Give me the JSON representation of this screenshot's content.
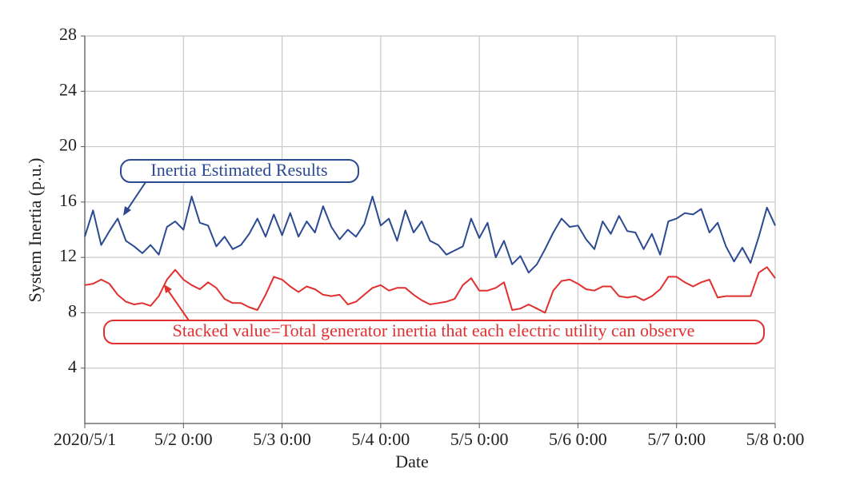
{
  "chart_data": {
    "type": "line",
    "xlabel": "Date",
    "ylabel": "System Inertia (p.u.)",
    "annotations": [
      "Inertia Estimated Results",
      "Stacked value=Total generator inertia that each electric utility can observe"
    ],
    "xlim": [
      0,
      168
    ],
    "xticks": [
      {
        "value": 0,
        "label": "2020/5/1"
      },
      {
        "value": 24,
        "label": "5/2 0:00"
      },
      {
        "value": 48,
        "label": "5/3 0:00"
      },
      {
        "value": 72,
        "label": "5/4 0:00"
      },
      {
        "value": 96,
        "label": "5/5 0:00"
      },
      {
        "value": 120,
        "label": "5/6 0:00"
      },
      {
        "value": 144,
        "label": "5/7 0:00"
      },
      {
        "value": 168,
        "label": "5/8 0:00"
      }
    ],
    "ylim": [
      0,
      28
    ],
    "yticks": [
      4,
      8,
      12,
      16,
      20,
      24,
      28
    ],
    "grid": true,
    "x": [
      0,
      2,
      4,
      6,
      8,
      10,
      12,
      14,
      16,
      18,
      20,
      22,
      24,
      26,
      28,
      30,
      32,
      34,
      36,
      38,
      40,
      42,
      44,
      46,
      48,
      50,
      52,
      54,
      56,
      58,
      60,
      62,
      64,
      66,
      68,
      70,
      72,
      74,
      76,
      78,
      80,
      82,
      84,
      86,
      88,
      90,
      92,
      94,
      96,
      98,
      100,
      102,
      104,
      106,
      108,
      110,
      112,
      114,
      116,
      118,
      120,
      122,
      124,
      126,
      128,
      130,
      132,
      134,
      136,
      138,
      140,
      142,
      144,
      146,
      148,
      150,
      152,
      154,
      156,
      158,
      160,
      162,
      164,
      166,
      168
    ],
    "series": [
      {
        "name": "Inertia Estimated Results",
        "color": "#2b4a91",
        "values": [
          13.5,
          15.4,
          12.9,
          13.9,
          14.8,
          13.2,
          12.8,
          12.3,
          12.9,
          12.2,
          14.2,
          14.6,
          14.0,
          16.4,
          14.5,
          14.3,
          12.8,
          13.5,
          12.6,
          12.9,
          13.7,
          14.8,
          13.5,
          15.1,
          13.6,
          15.2,
          13.5,
          14.6,
          13.8,
          15.7,
          14.2,
          13.3,
          14.0,
          13.5,
          14.4,
          16.4,
          14.3,
          14.8,
          13.2,
          15.4,
          13.8,
          14.6,
          13.2,
          12.9,
          12.2,
          12.5,
          12.8,
          14.8,
          13.4,
          14.5,
          12.0,
          13.2,
          11.5,
          12.1,
          10.9,
          11.5,
          12.6,
          13.8,
          14.8,
          14.2,
          14.3,
          13.3,
          12.6,
          14.6,
          13.7,
          15.0,
          13.9,
          13.8,
          12.6,
          13.7,
          12.2,
          14.6,
          14.8,
          15.2,
          15.1,
          15.5,
          13.8,
          14.5,
          12.8,
          11.7,
          12.7,
          11.6,
          13.5,
          15.6,
          14.3
        ]
      },
      {
        "name": "Stacked value=Total generator inertia that each electric utility can observe",
        "color": "#e03030",
        "values": [
          10.0,
          10.1,
          10.4,
          10.1,
          9.3,
          8.8,
          8.6,
          8.7,
          8.5,
          9.2,
          10.4,
          11.1,
          10.4,
          10.0,
          9.7,
          10.2,
          9.8,
          9.0,
          8.7,
          8.7,
          8.4,
          8.2,
          9.3,
          10.6,
          10.4,
          9.9,
          9.5,
          9.9,
          9.7,
          9.3,
          9.2,
          9.3,
          8.6,
          8.8,
          9.3,
          9.8,
          10.0,
          9.6,
          9.8,
          9.8,
          9.3,
          8.9,
          8.6,
          8.7,
          8.8,
          9.0,
          10.0,
          10.5,
          9.6,
          9.6,
          9.8,
          10.2,
          8.2,
          8.3,
          8.6,
          8.3,
          8.0,
          9.6,
          10.3,
          10.4,
          10.1,
          9.7,
          9.6,
          9.9,
          9.9,
          9.2,
          9.1,
          9.2,
          8.9,
          9.2,
          9.7,
          10.6,
          10.6,
          10.2,
          9.9,
          10.2,
          10.4,
          9.1,
          9.2,
          9.2,
          9.2,
          9.2,
          10.9,
          11.3,
          10.5
        ]
      }
    ]
  }
}
